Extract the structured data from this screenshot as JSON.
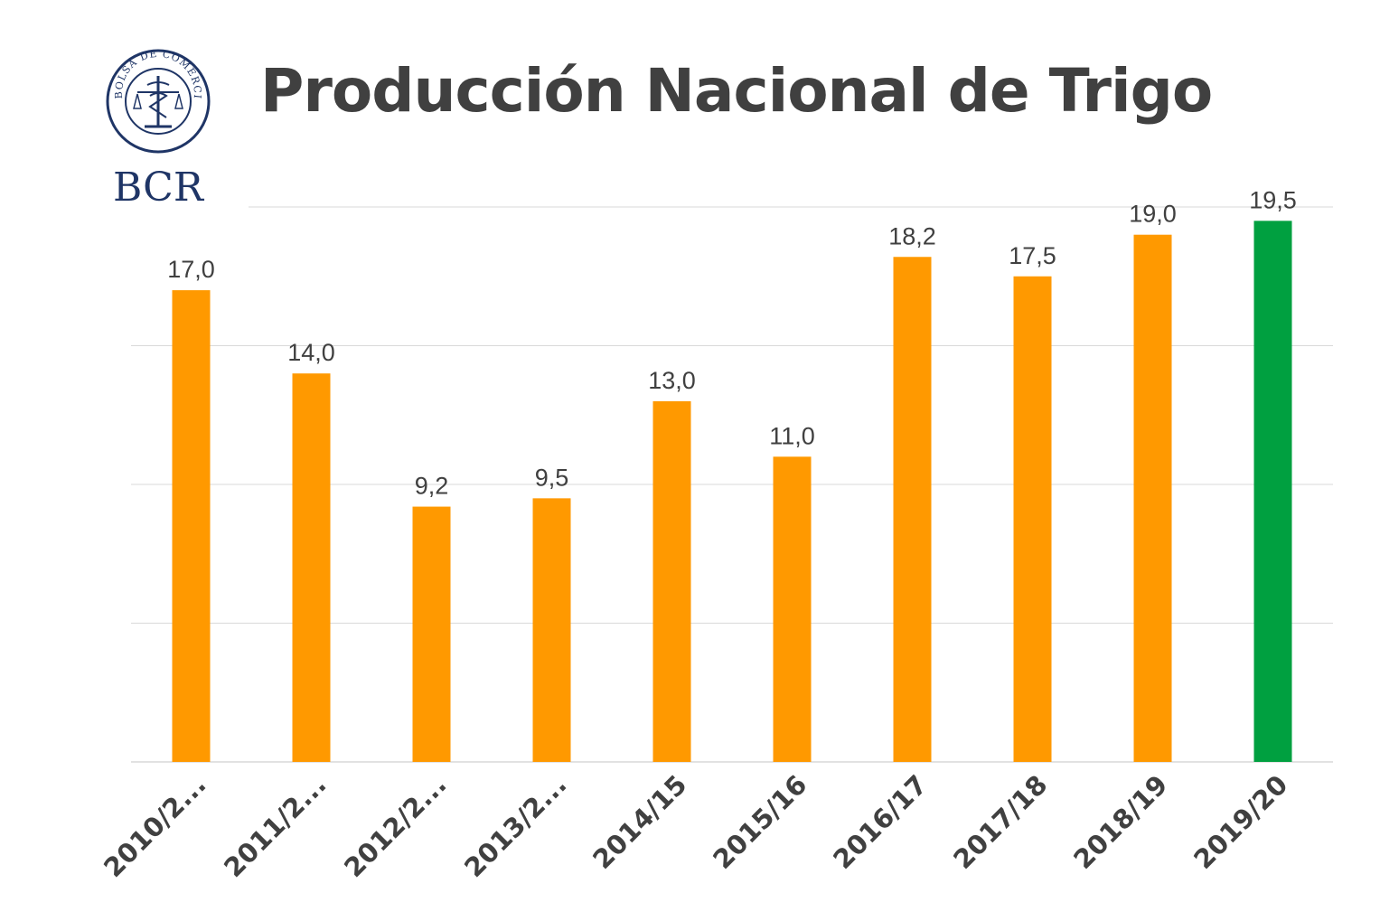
{
  "header": {
    "title": "Producción Nacional de Trigo",
    "logo_text": "BCR",
    "seal_text": "BOLSA DE COMERCIO DE ROSARIO"
  },
  "colors": {
    "bar": "#FF9900",
    "highlight_bar": "#00A040",
    "grid": "#D9D9D9",
    "text": "#404040",
    "logo": "#1F3566"
  },
  "chart_data": {
    "type": "bar",
    "categories": [
      "2010/2...",
      "2011/2...",
      "2012/2...",
      "2013/2...",
      "2014/15",
      "2015/16",
      "2016/17",
      "2017/18",
      "2018/19",
      "2019/20"
    ],
    "values": [
      17.0,
      14.0,
      9.2,
      9.5,
      13.0,
      11.0,
      18.2,
      17.5,
      19.0,
      19.5
    ],
    "data_labels": [
      "17,0",
      "14,0",
      "9,2",
      "9,5",
      "13,0",
      "11,0",
      "18,2",
      "17,5",
      "19,0",
      "19,5"
    ],
    "highlight_index": 9,
    "title": "Producción Nacional de Trigo",
    "xlabel": "",
    "ylabel": "",
    "ylim": [
      0,
      20
    ],
    "gridlines": [
      5,
      10,
      15,
      20
    ],
    "grid": true,
    "legend": false
  }
}
